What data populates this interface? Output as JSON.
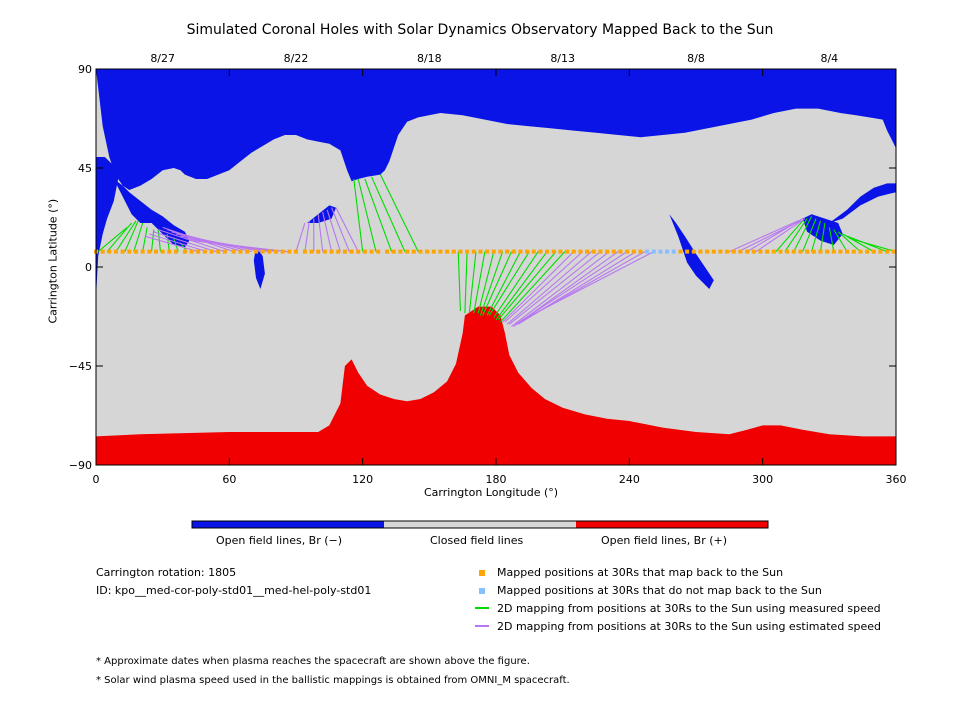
{
  "chart_data": {
    "type": "heatmap",
    "title": "Simulated Coronal Holes with Solar Dynamics Observatory Mapped Back to the Sun",
    "xlabel": "Carrington Longitude (°)",
    "ylabel": "Carrington Latitude (°)",
    "xlim": [
      0,
      360
    ],
    "ylim": [
      -90,
      90
    ],
    "x_ticks": [
      "0",
      "60",
      "120",
      "180",
      "240",
      "300",
      "360"
    ],
    "y_ticks": [
      "90",
      "45",
      "0",
      "−45",
      "−90"
    ],
    "top_date_ticks": [
      {
        "label": "8/27",
        "lon": 30
      },
      {
        "label": "8/22",
        "lon": 90
      },
      {
        "label": "8/18",
        "lon": 150
      },
      {
        "label": "8/13",
        "lon": 210
      },
      {
        "label": "8/8",
        "lon": 270
      },
      {
        "label": "8/4",
        "lon": 330
      }
    ],
    "regions": [
      {
        "name": "Open field lines, Br (−)",
        "color": "#0a14e6"
      },
      {
        "name": "Closed field lines",
        "color": "#d6d6d6"
      },
      {
        "name": "Open field lines, Br (+)",
        "color": "#f00000"
      }
    ],
    "north_boundary": [
      [
        0,
        90
      ],
      [
        3,
        64
      ],
      [
        6,
        50
      ],
      [
        8,
        44
      ],
      [
        10,
        40
      ],
      [
        12,
        37
      ],
      [
        15,
        35
      ],
      [
        20,
        37
      ],
      [
        25,
        40
      ],
      [
        30,
        44
      ],
      [
        35,
        45
      ],
      [
        38,
        44
      ],
      [
        40,
        42
      ],
      [
        45,
        40
      ],
      [
        50,
        40
      ],
      [
        55,
        42
      ],
      [
        60,
        44
      ],
      [
        65,
        48
      ],
      [
        70,
        52
      ],
      [
        75,
        55
      ],
      [
        80,
        58
      ],
      [
        85,
        60
      ],
      [
        90,
        60
      ],
      [
        95,
        58
      ],
      [
        100,
        57
      ],
      [
        105,
        56
      ],
      [
        110,
        53
      ],
      [
        113,
        44
      ],
      [
        115,
        39
      ],
      [
        118,
        40
      ],
      [
        122,
        41
      ],
      [
        128,
        42
      ],
      [
        130,
        44
      ],
      [
        132,
        48
      ],
      [
        136,
        60
      ],
      [
        140,
        66
      ],
      [
        145,
        68
      ],
      [
        155,
        70
      ],
      [
        165,
        69
      ],
      [
        175,
        67
      ],
      [
        185,
        65
      ],
      [
        195,
        64
      ],
      [
        205,
        63
      ],
      [
        215,
        62
      ],
      [
        225,
        61
      ],
      [
        235,
        60
      ],
      [
        245,
        59
      ],
      [
        255,
        60
      ],
      [
        265,
        61
      ],
      [
        275,
        63
      ],
      [
        285,
        65
      ],
      [
        295,
        67
      ],
      [
        305,
        70
      ],
      [
        315,
        72
      ],
      [
        325,
        72
      ],
      [
        335,
        70
      ],
      [
        342,
        69
      ],
      [
        348,
        68
      ],
      [
        354,
        67
      ],
      [
        356,
        62
      ],
      [
        358,
        58
      ],
      [
        360,
        54
      ]
    ],
    "south_boundary": [
      [
        0,
        -77
      ],
      [
        20,
        -76
      ],
      [
        40,
        -75.5
      ],
      [
        60,
        -75
      ],
      [
        80,
        -75
      ],
      [
        100,
        -75
      ],
      [
        105,
        -72
      ],
      [
        110,
        -62
      ],
      [
        112,
        -45
      ],
      [
        115,
        -42
      ],
      [
        118,
        -48
      ],
      [
        122,
        -54
      ],
      [
        128,
        -58
      ],
      [
        134,
        -60
      ],
      [
        140,
        -61
      ],
      [
        146,
        -60
      ],
      [
        152,
        -57
      ],
      [
        158,
        -52
      ],
      [
        162,
        -44
      ],
      [
        165,
        -30
      ],
      [
        166,
        -22
      ],
      [
        172,
        -18
      ],
      [
        178,
        -18
      ],
      [
        182,
        -22
      ],
      [
        184,
        -30
      ],
      [
        186,
        -40
      ],
      [
        190,
        -48
      ],
      [
        196,
        -55
      ],
      [
        202,
        -60
      ],
      [
        210,
        -64
      ],
      [
        220,
        -67
      ],
      [
        230,
        -69
      ],
      [
        240,
        -70
      ],
      [
        255,
        -73
      ],
      [
        270,
        -75
      ],
      [
        285,
        -76
      ],
      [
        293,
        -74
      ],
      [
        300,
        -72
      ],
      [
        308,
        -72
      ],
      [
        318,
        -74
      ],
      [
        330,
        -76
      ],
      [
        345,
        -77
      ],
      [
        360,
        -77
      ]
    ],
    "blue_blobs": [
      [
        [
          8,
          40
        ],
        [
          12,
          32
        ],
        [
          16,
          24
        ],
        [
          20,
          20
        ],
        [
          25,
          20
        ],
        [
          30,
          15
        ],
        [
          35,
          10
        ],
        [
          40,
          9
        ],
        [
          42,
          12
        ],
        [
          40,
          16
        ],
        [
          35,
          19
        ],
        [
          30,
          23
        ],
        [
          25,
          26
        ],
        [
          20,
          30
        ],
        [
          15,
          34
        ],
        [
          12,
          37
        ]
      ],
      [
        [
          4,
          50
        ],
        [
          8,
          46
        ],
        [
          10,
          40
        ],
        [
          8,
          30
        ],
        [
          5,
          22
        ],
        [
          3,
          15
        ],
        [
          1,
          5
        ],
        [
          0,
          -14
        ],
        [
          0,
          50
        ]
      ],
      [
        [
          72,
          9
        ],
        [
          75,
          5
        ],
        [
          76,
          -3
        ],
        [
          74,
          -10
        ],
        [
          72,
          -5
        ],
        [
          71,
          3
        ]
      ],
      [
        [
          95,
          20
        ],
        [
          100,
          24
        ],
        [
          105,
          28
        ],
        [
          108,
          27
        ],
        [
          106,
          22
        ],
        [
          100,
          20
        ]
      ],
      [
        [
          258,
          24
        ],
        [
          262,
          14
        ],
        [
          266,
          2
        ],
        [
          270,
          -4
        ],
        [
          276,
          -10
        ],
        [
          278,
          -6
        ],
        [
          274,
          0
        ],
        [
          270,
          6
        ],
        [
          265,
          14
        ],
        [
          261,
          20
        ]
      ],
      [
        [
          318,
          22
        ],
        [
          322,
          24
        ],
        [
          328,
          22
        ],
        [
          334,
          20
        ],
        [
          336,
          15
        ],
        [
          332,
          10
        ],
        [
          326,
          12
        ],
        [
          320,
          16
        ]
      ],
      [
        [
          330,
          20
        ],
        [
          338,
          26
        ],
        [
          344,
          32
        ],
        [
          350,
          36
        ],
        [
          356,
          38
        ],
        [
          360,
          38
        ],
        [
          360,
          34
        ],
        [
          352,
          32
        ],
        [
          344,
          28
        ],
        [
          336,
          22
        ]
      ]
    ],
    "mapped_positions_lat": 7,
    "mapped_back_lon": [
      0,
      3,
      6,
      9,
      12,
      15,
      18,
      21,
      24,
      27,
      30,
      33,
      36,
      40,
      43,
      46,
      49,
      52,
      55,
      58,
      62,
      65,
      68,
      72,
      75,
      78,
      81,
      84,
      87,
      90,
      94,
      97,
      100,
      103,
      106,
      109,
      112,
      115,
      118,
      121,
      124,
      127,
      131,
      134,
      137,
      140,
      143,
      146,
      149,
      152,
      155,
      158,
      161,
      164,
      167,
      170,
      173,
      176,
      179,
      182,
      185,
      188,
      191,
      194,
      197,
      200,
      203,
      206,
      209,
      212,
      215,
      218,
      221,
      224,
      227,
      230,
      233,
      236,
      239,
      242,
      245,
      263,
      266,
      269,
      272,
      275,
      278,
      281,
      284,
      287,
      290,
      293,
      296,
      299,
      302,
      305,
      308,
      311,
      314,
      317,
      320,
      323,
      326,
      329,
      332,
      335,
      338,
      341,
      344,
      347,
      350,
      353,
      356,
      359
    ],
    "not_mapped_lon": [
      248,
      251,
      254,
      257,
      260
    ],
    "measured_speed_lines": [
      [
        1,
        7,
        14,
        18
      ],
      [
        5,
        7,
        16,
        20
      ],
      [
        9,
        7,
        18,
        21
      ],
      [
        13,
        7,
        19,
        21
      ],
      [
        17,
        7,
        21,
        20
      ],
      [
        21,
        7,
        23,
        18
      ],
      [
        25,
        7,
        26,
        17
      ],
      [
        29,
        7,
        28,
        17
      ],
      [
        33,
        7,
        32,
        15
      ],
      [
        37,
        7,
        35,
        13
      ],
      [
        41,
        7,
        38,
        11
      ],
      [
        120,
        7,
        116,
        40
      ],
      [
        126,
        7,
        118,
        40
      ],
      [
        133,
        7,
        121,
        40
      ],
      [
        139,
        7,
        124,
        41
      ],
      [
        145,
        7,
        128,
        42
      ],
      [
        163,
        7,
        164,
        -20
      ],
      [
        167,
        7,
        166,
        -21
      ],
      [
        171,
        7,
        168,
        -21
      ],
      [
        175,
        7,
        170,
        -21
      ],
      [
        179,
        7,
        172,
        -21
      ],
      [
        183,
        7,
        173,
        -22
      ],
      [
        187,
        7,
        174,
        -22
      ],
      [
        191,
        7,
        176,
        -22
      ],
      [
        195,
        7,
        177,
        -22
      ],
      [
        199,
        7,
        179,
        -23
      ],
      [
        203,
        7,
        180,
        -24
      ],
      [
        207,
        7,
        181,
        -24
      ],
      [
        211,
        7,
        182,
        -25
      ],
      [
        306,
        7,
        318,
        21
      ],
      [
        310,
        7,
        320,
        22
      ],
      [
        314,
        7,
        322,
        23
      ],
      [
        318,
        7,
        324,
        22
      ],
      [
        322,
        7,
        326,
        21
      ],
      [
        326,
        7,
        328,
        20
      ],
      [
        332,
        7,
        330,
        18
      ],
      [
        338,
        7,
        332,
        17
      ],
      [
        344,
        7,
        334,
        16
      ],
      [
        350,
        7,
        336,
        15
      ],
      [
        356,
        7,
        338,
        14
      ],
      [
        360,
        7,
        339,
        13
      ]
    ],
    "estimated_speed_lines": [
      [
        46,
        7,
        22,
        14
      ],
      [
        50,
        7,
        24,
        15
      ],
      [
        54,
        7,
        26,
        16
      ],
      [
        58,
        7,
        28,
        17
      ],
      [
        62,
        7,
        30,
        18
      ],
      [
        66,
        7,
        32,
        17
      ],
      [
        70,
        7,
        34,
        16
      ],
      [
        74,
        7,
        36,
        15
      ],
      [
        78,
        7,
        38,
        14
      ],
      [
        82,
        7,
        40,
        13
      ],
      [
        86,
        7,
        43,
        12
      ],
      [
        90,
        7,
        94,
        20
      ],
      [
        94,
        7,
        96,
        21
      ],
      [
        98,
        7,
        98,
        22
      ],
      [
        102,
        7,
        100,
        24
      ],
      [
        106,
        7,
        102,
        25
      ],
      [
        110,
        7,
        104,
        26
      ],
      [
        114,
        7,
        106,
        27
      ],
      [
        118,
        7,
        108,
        27
      ],
      [
        215,
        7,
        183,
        -25
      ],
      [
        219,
        7,
        184,
        -25
      ],
      [
        223,
        7,
        185,
        -26
      ],
      [
        227,
        7,
        186,
        -26
      ],
      [
        231,
        7,
        187,
        -27
      ],
      [
        235,
        7,
        188,
        -27
      ],
      [
        239,
        7,
        189,
        -26
      ],
      [
        243,
        7,
        190,
        -26
      ],
      [
        247,
        7,
        191,
        -25
      ],
      [
        251,
        7,
        192,
        -24
      ],
      [
        285,
        7,
        316,
        21
      ],
      [
        289,
        7,
        317,
        21
      ],
      [
        293,
        7,
        318,
        22
      ],
      [
        297,
        7,
        319,
        22
      ]
    ],
    "grid": false
  },
  "colorbar": {
    "labels": [
      "Open field lines, Br (−)",
      "Closed field lines",
      "Open field lines, Br (+)"
    ]
  },
  "info": {
    "rotation": "Carrington rotation: 1805",
    "id": "ID: kpo__med-cor-poly-std01__med-hel-poly-std01"
  },
  "legend": {
    "items": [
      {
        "label": "Mapped positions at 30Rs that map back to the Sun",
        "color": "#ffa500",
        "kind": "square"
      },
      {
        "label": "Mapped positions at 30Rs that do not map back to the Sun",
        "color": "#87bfff",
        "kind": "square"
      },
      {
        "label": "2D mapping from positions at 30Rs to the Sun using measured speed",
        "color": "#00dd00",
        "kind": "line"
      },
      {
        "label": "2D mapping from positions at 30Rs to the Sun using estimated speed",
        "color": "#b877f0",
        "kind": "line"
      }
    ]
  },
  "notes": [
    "* Approximate dates when plasma reaches the spacecraft are shown above the figure.",
    "* Solar wind plasma speed used in the ballistic mappings is obtained from OMNI_M spacecraft."
  ]
}
